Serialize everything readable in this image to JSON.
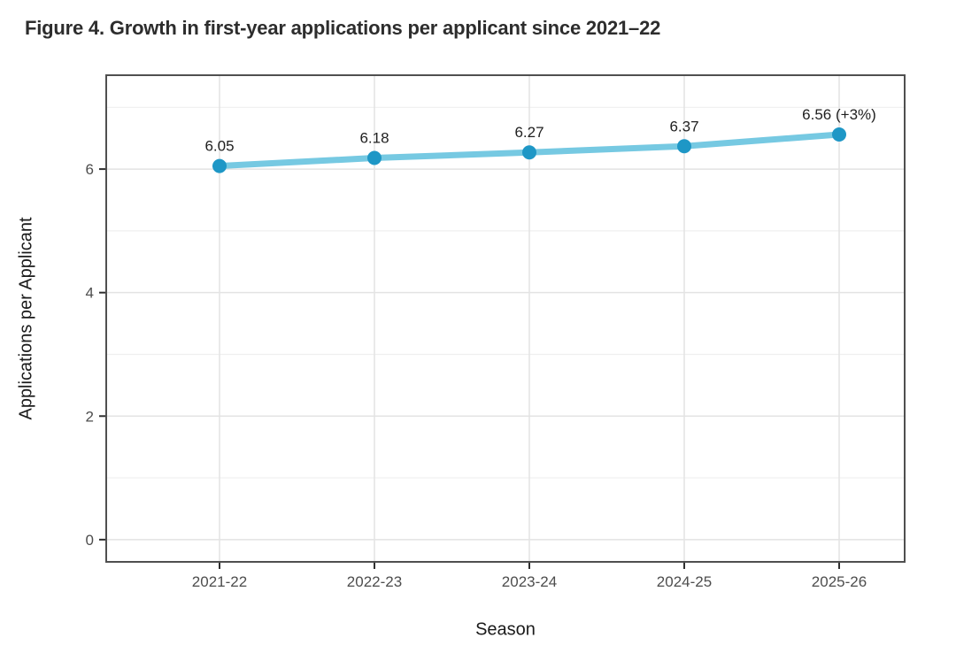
{
  "figure": {
    "title": "Figure 4. Growth in first-year applications per applicant since 2021–22"
  },
  "chart_data": {
    "type": "line",
    "title": "Figure 4. Growth in first-year applications per applicant since 2021–22",
    "xlabel": "Season",
    "ylabel": "Applications per Applicant",
    "categories": [
      "2021-22",
      "2022-23",
      "2023-24",
      "2024-25",
      "2025-26"
    ],
    "series": [
      {
        "name": "Applications per Applicant",
        "values": [
          6.05,
          6.18,
          6.27,
          6.37,
          6.56
        ],
        "point_labels": [
          "6.05",
          "6.18",
          "6.27",
          "6.37",
          "6.56 (+3%)"
        ]
      }
    ],
    "ylim": [
      -0.36,
      7.52
    ],
    "y_ticks": [
      0,
      2,
      4,
      6
    ],
    "y_minor_gridlines": [
      1,
      3,
      5,
      7
    ],
    "grid": true,
    "legend_position": "none",
    "colors": {
      "line": "#76c9e2",
      "point": "#1e97c6",
      "panel_background": "#ffffff",
      "panel_border": "#4f4f4f",
      "grid_major": "#e3e3e3",
      "grid_minor": "#efefef",
      "tick_mark": "#2f2f2f",
      "tick_label": "#4d4d4d",
      "axis_title": "#1a1a1a",
      "data_label": "#1f1f1f",
      "title": "#2d2d2d"
    }
  }
}
